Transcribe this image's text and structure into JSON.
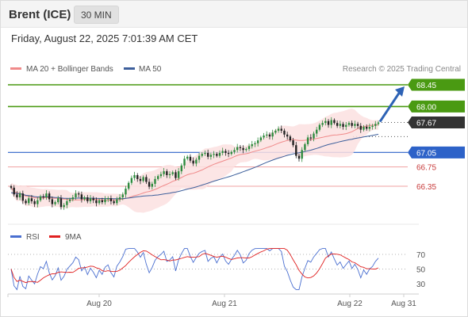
{
  "header": {
    "instrument": "Brent (ICE)",
    "timeframe": "30 MIN"
  },
  "datetime": "Friday, August 22, 2025 7:01:39 AM CET",
  "colors": {
    "ma20": "#f08a8a",
    "band": "#fbe1e1",
    "ma50": "#3d5f9b",
    "green": "#4a9a12",
    "blue": "#2d62c8",
    "red": "#f0a0a0",
    "dark": "#333333",
    "rsi": "#4a6fd0",
    "rsi_ma": "#e02020",
    "arrow": "#2d62b5"
  },
  "chart_data": [
    {
      "type": "candlestick",
      "legend": [
        {
          "label": "MA 20 + Bollinger Bands",
          "color": "#f08a8a"
        },
        {
          "label": "MA 50",
          "color": "#3d5f9b"
        }
      ],
      "copyright": "Research © 2025 Trading Central",
      "x_ticks": [
        "Aug 20",
        "Aug 21",
        "Aug 22",
        "Aug 31"
      ],
      "ylim": [
        65.9,
        68.55
      ],
      "price_levels": [
        {
          "label": "68.45",
          "value": 68.45,
          "kind": "resistance",
          "color": "#4a9a12"
        },
        {
          "label": "68.00",
          "value": 68.0,
          "kind": "resistance",
          "color": "#4a9a12"
        },
        {
          "label": "67.67",
          "value": 67.67,
          "kind": "last-price",
          "color": "#333333"
        },
        {
          "label": "67.05",
          "value": 67.05,
          "kind": "pivot",
          "color": "#2d62c8"
        },
        {
          "label": "66.75",
          "value": 66.75,
          "kind": "support",
          "color": "#f0a0a0"
        },
        {
          "label": "66.35",
          "value": 66.35,
          "kind": "support",
          "color": "#f0a0a0"
        }
      ],
      "close_series": [
        66.32,
        66.18,
        66.12,
        66.2,
        66.05,
        66.0,
        66.1,
        66.04,
        65.98,
        66.06,
        66.14,
        66.12,
        66.2,
        66.08,
        65.98,
        66.02,
        66.1,
        65.92,
        65.96,
        66.04,
        66.08,
        66.12,
        66.2,
        66.18,
        66.08,
        66.12,
        66.04,
        66.1,
        66.06,
        66.0,
        66.06,
        66.02,
        66.08,
        66.1,
        66.04,
        66.0,
        66.08,
        66.12,
        66.18,
        66.3,
        66.42,
        66.52,
        66.58,
        66.5,
        66.46,
        66.54,
        66.44,
        66.34,
        66.4,
        66.5,
        66.56,
        66.6,
        66.66,
        66.58,
        66.6,
        66.64,
        66.52,
        66.66,
        66.78,
        66.92,
        66.96,
        66.88,
        66.82,
        66.9,
        66.98,
        67.02,
        67.04,
        66.96,
        67.0,
        67.02,
        66.98,
        67.04,
        67.08,
        67.04,
        67.02,
        67.06,
        67.1,
        67.16,
        67.14,
        67.1,
        67.12,
        67.18,
        67.22,
        67.24,
        67.3,
        67.36,
        67.4,
        67.42,
        67.38,
        67.46,
        67.5,
        67.54,
        67.5,
        67.42,
        67.38,
        67.3,
        67.2,
        66.98,
        66.92,
        67.1,
        67.22,
        67.36,
        67.34,
        67.44,
        67.52,
        67.62,
        67.66,
        67.7,
        67.62,
        67.72,
        67.66,
        67.6,
        67.64,
        67.58,
        67.62,
        67.66,
        67.6,
        67.64,
        67.6,
        67.52,
        67.58,
        67.54,
        67.58,
        67.6,
        67.64,
        67.67
      ],
      "forecast_target": 68.45,
      "indicator": {
        "legend": [
          {
            "label": "RSI",
            "color": "#4a6fd0"
          },
          {
            "label": "9MA",
            "color": "#e02020"
          }
        ],
        "y_ticks": [
          "70",
          "50",
          "30"
        ],
        "ylim": [
          20,
          80
        ]
      }
    }
  ]
}
